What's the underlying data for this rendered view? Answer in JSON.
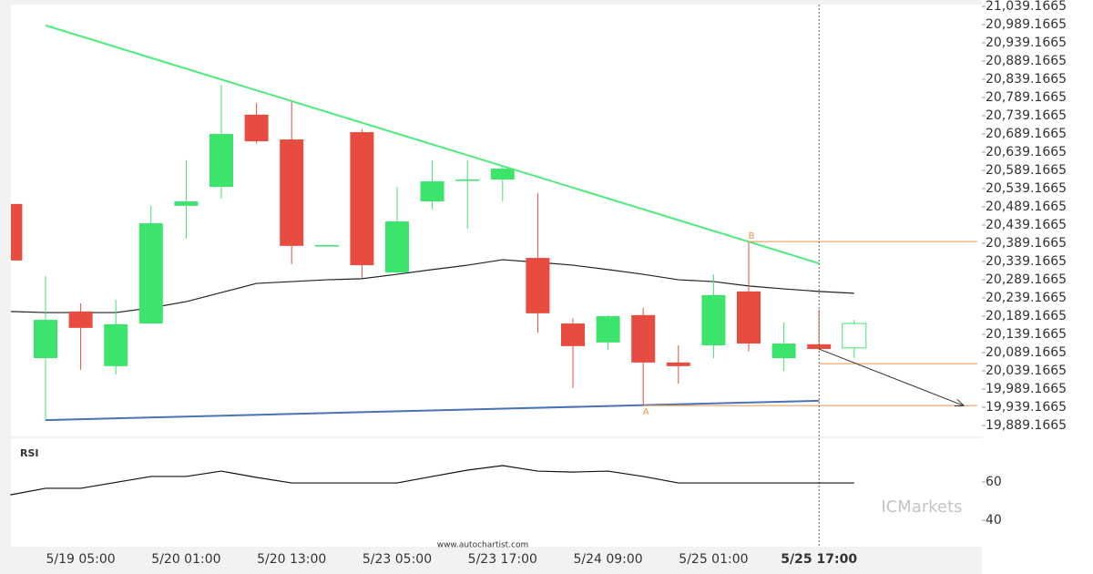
{
  "chart_data": {
    "type": "candlestick",
    "categories": [
      null,
      null,
      "5/19 05:00",
      null,
      null,
      "5/20 01:00",
      null,
      null,
      "5/20 13:00",
      null,
      null,
      "5/23 05:00",
      null,
      null,
      "5/23 17:00",
      null,
      null,
      "5/24 09:00",
      null,
      null,
      "5/25 01:00",
      null,
      null,
      "5/25 17:00",
      null
    ],
    "open": [
      20497,
      20074,
      20202,
      20052,
      20169,
      20492,
      20544,
      20742,
      20674,
      20384,
      20694,
      20309,
      20504,
      20562,
      20564,
      20349,
      20169,
      20117,
      20192,
      20062,
      20109,
      20257,
      20074,
      20112,
      20102
    ],
    "high": [
      20497,
      20299,
      20224,
      20234,
      20492,
      20617,
      20824,
      20774,
      20782,
      20384,
      20702,
      20544,
      20617,
      20617,
      20599,
      20527,
      20184,
      20192,
      20212,
      20109,
      20304,
      20394,
      20172,
      20207,
      20179
    ],
    "low": [
      20342,
      19902,
      20042,
      20029,
      20169,
      20402,
      20512,
      20662,
      20332,
      20384,
      20294,
      20307,
      20482,
      20429,
      20504,
      20144,
      19992,
      20097,
      19944,
      20004,
      20074,
      20092,
      20039,
      20097,
      20074
    ],
    "close": [
      20342,
      20179,
      20157,
      20167,
      20444,
      20504,
      20689,
      20669,
      20382,
      20384,
      20329,
      20449,
      20559,
      20564,
      20594,
      20197,
      20107,
      20189,
      20062,
      20052,
      20247,
      20114,
      20114,
      20099,
      20169
    ],
    "up_color": "#3ce46c",
    "down_color": "#e84c40",
    "last_hollow": true,
    "current_index": 23,
    "ylim": [
      19861.6665,
      21044.1665
    ],
    "yticks": [
      {
        "value": 21039.1665,
        "label": "21,039.1665"
      },
      {
        "value": 20989.1665,
        "label": "20,989.1665"
      },
      {
        "value": 20939.1665,
        "label": "20,939.1665"
      },
      {
        "value": 20889.1665,
        "label": "20,889.1665"
      },
      {
        "value": 20839.1665,
        "label": "20,839.1665"
      },
      {
        "value": 20789.1665,
        "label": "20,789.1665"
      },
      {
        "value": 20739.1665,
        "label": "20,739.1665"
      },
      {
        "value": 20689.1665,
        "label": "20,689.1665"
      },
      {
        "value": 20639.1665,
        "label": "20,639.1665"
      },
      {
        "value": 20589.1665,
        "label": "20,589.1665"
      },
      {
        "value": 20539.1665,
        "label": "20,539.1665"
      },
      {
        "value": 20489.1665,
        "label": "20,489.1665"
      },
      {
        "value": 20439.1665,
        "label": "20,439.1665"
      },
      {
        "value": 20389.1665,
        "label": "20,389.1665"
      },
      {
        "value": 20339.1665,
        "label": "20,339.1665"
      },
      {
        "value": 20289.1665,
        "label": "20,289.1665"
      },
      {
        "value": 20239.1665,
        "label": "20,239.1665"
      },
      {
        "value": 20189.1665,
        "label": "20,189.1665"
      },
      {
        "value": 20139.1665,
        "label": "20,139.1665"
      },
      {
        "value": 20089.1665,
        "label": "20,089.1665"
      },
      {
        "value": 20039.1665,
        "label": "20,039.1665"
      },
      {
        "value": 19989.1665,
        "label": "19,989.1665"
      },
      {
        "value": 19939.1665,
        "label": "19,939.1665"
      },
      {
        "value": 19889.1665,
        "label": "19,889.1665"
      }
    ],
    "moving_average": {
      "color": "#222222",
      "values": [
        20202,
        20199,
        20199,
        20199,
        20212,
        20229,
        20254,
        20279,
        20284,
        20289,
        20292,
        20304,
        20317,
        20329,
        20344,
        20337,
        20329,
        20317,
        20304,
        20289,
        20284,
        20272,
        20264,
        20257,
        20252
      ]
    },
    "trendlines": [
      {
        "color": "#4deb7c",
        "x": [
          1,
          23
        ],
        "values": [
          20987,
          20334
        ]
      },
      {
        "color": "#4a74b4",
        "x": [
          1,
          23
        ],
        "values": [
          19904,
          19957
        ]
      }
    ],
    "levels": [
      {
        "label": "B",
        "value": 20394,
        "x": [
          21,
          27.5
        ]
      },
      {
        "label": "A",
        "value": 19944,
        "x": [
          18,
          27.5
        ]
      },
      {
        "value": 20059,
        "x": [
          23,
          27.5
        ]
      }
    ],
    "level_color": "#e8954a",
    "forecast": {
      "x": [
        23,
        27.1
      ],
      "values": [
        20099,
        19944
      ]
    },
    "rsi": {
      "title": "RSI",
      "values": [
        53.3,
        56.7,
        56.7,
        59.8,
        62.9,
        62.9,
        65.7,
        62.4,
        59.5,
        59.5,
        59.5,
        59.5,
        62.9,
        66.2,
        68.6,
        65.7,
        65.2,
        65.7,
        62.9,
        59.5,
        59.5,
        59.5,
        59.5,
        59.5,
        59.5
      ],
      "ylim": [
        26.2,
        82.4
      ],
      "yticks": [
        60,
        40
      ],
      "color": "#111111"
    },
    "watermark": "www.autochartist.com",
    "logo": "ICMarkets"
  }
}
